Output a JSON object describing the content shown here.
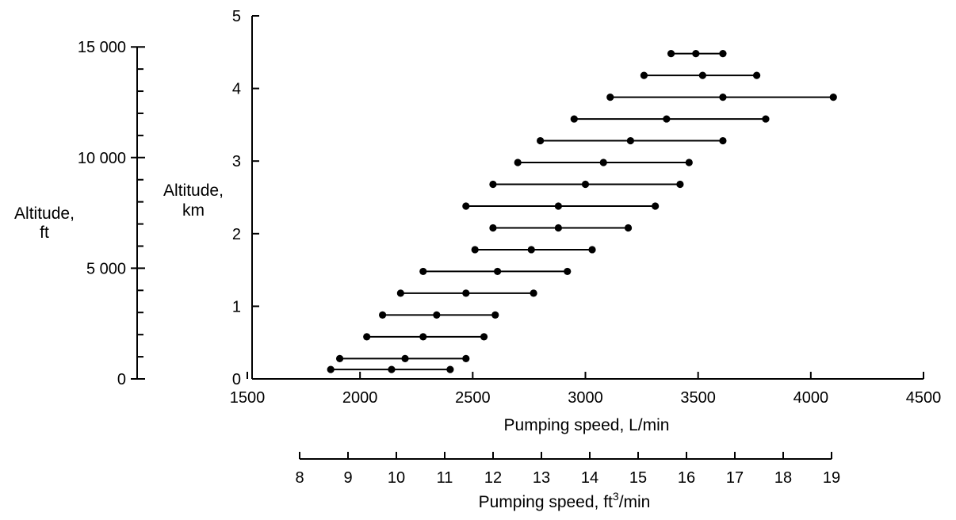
{
  "chart_data": {
    "type": "scatter",
    "x_axis": {
      "label": "Pumping speed, L/min",
      "range": [
        1500,
        4500
      ],
      "ticks": [
        1500,
        2000,
        2500,
        3000,
        3500,
        4000,
        4500
      ],
      "tick_labels": [
        "1500",
        "2000",
        "2500",
        "3000",
        "3500",
        "4000",
        "4500"
      ]
    },
    "x_axis_secondary": {
      "label_prefix": "Pumping speed, ft",
      "label_sup": "3",
      "label_suffix": "/min",
      "ticks": [
        8,
        9,
        10,
        11,
        12,
        13,
        14,
        15,
        16,
        17,
        18,
        19
      ],
      "tick_labels": [
        "8",
        "9",
        "10",
        "11",
        "12",
        "13",
        "14",
        "15",
        "16",
        "17",
        "18",
        "19"
      ]
    },
    "y_axis": {
      "label_line1": "Altitude,",
      "label_line2": "km",
      "range": [
        0,
        5
      ],
      "ticks": [
        0,
        1,
        2,
        3,
        4,
        5
      ],
      "tick_labels": [
        "0",
        "1",
        "2",
        "3",
        "4",
        "5"
      ]
    },
    "y_axis_secondary": {
      "label_line1": "Altitude,",
      "label_line2": "ft",
      "range": [
        0,
        15000
      ],
      "ticks": [
        0,
        5000,
        10000,
        15000
      ],
      "tick_labels": [
        "0",
        "5 000",
        "10 000",
        "15 000"
      ]
    },
    "series": [
      {
        "altitude": 0.13,
        "values": [
          1870,
          2140,
          2400
        ]
      },
      {
        "altitude": 0.28,
        "values": [
          1910,
          2200,
          2470
        ]
      },
      {
        "altitude": 0.58,
        "values": [
          2030,
          2280,
          2550
        ]
      },
      {
        "altitude": 0.88,
        "values": [
          2100,
          2340,
          2600
        ]
      },
      {
        "altitude": 1.18,
        "values": [
          2180,
          2470,
          2770
        ]
      },
      {
        "altitude": 1.48,
        "values": [
          2280,
          2610,
          2920
        ]
      },
      {
        "altitude": 1.78,
        "values": [
          2510,
          2760,
          3030
        ]
      },
      {
        "altitude": 2.08,
        "values": [
          2590,
          2880,
          3190
        ]
      },
      {
        "altitude": 2.38,
        "values": [
          2470,
          2880,
          3310
        ]
      },
      {
        "altitude": 2.68,
        "values": [
          2590,
          3000,
          3420
        ]
      },
      {
        "altitude": 2.98,
        "values": [
          2700,
          3080,
          3460
        ]
      },
      {
        "altitude": 3.28,
        "values": [
          2800,
          3200,
          3610
        ]
      },
      {
        "altitude": 3.58,
        "values": [
          2950,
          3360,
          3800
        ]
      },
      {
        "altitude": 3.88,
        "values": [
          3110,
          3610,
          4100
        ]
      },
      {
        "altitude": 4.18,
        "values": [
          3260,
          3520,
          3760
        ]
      },
      {
        "altitude": 4.48,
        "values": [
          3380,
          3490,
          3610
        ]
      }
    ]
  }
}
